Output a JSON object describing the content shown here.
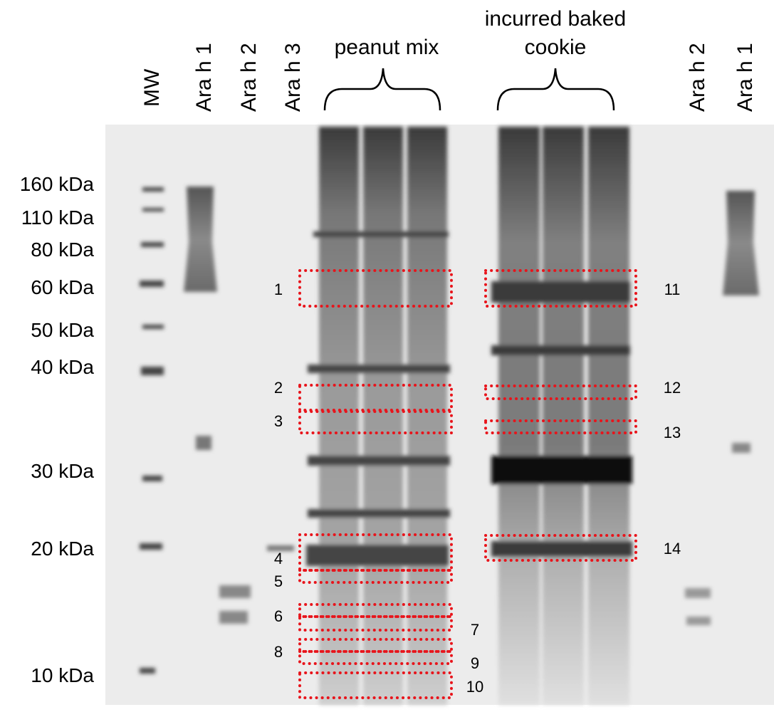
{
  "lanes": [
    "MW",
    "Ara h 1",
    "Ara h 2",
    "Ara h 3",
    "Ara h 2",
    "Ara h 1"
  ],
  "groups": [
    {
      "lines": [
        "peanut mix"
      ]
    },
    {
      "lines": [
        "incurred baked",
        "cookie"
      ]
    }
  ],
  "markers": [
    "160 kDa",
    "110 kDa",
    "80 kDa",
    "60 kDa",
    "50 kDa",
    "40 kDa",
    "30 kDa",
    "20 kDa",
    "10 kDa"
  ],
  "regions": [
    "1",
    "2",
    "3",
    "4",
    "5",
    "6",
    "7",
    "8",
    "9",
    "10",
    "11",
    "12",
    "13",
    "14"
  ]
}
